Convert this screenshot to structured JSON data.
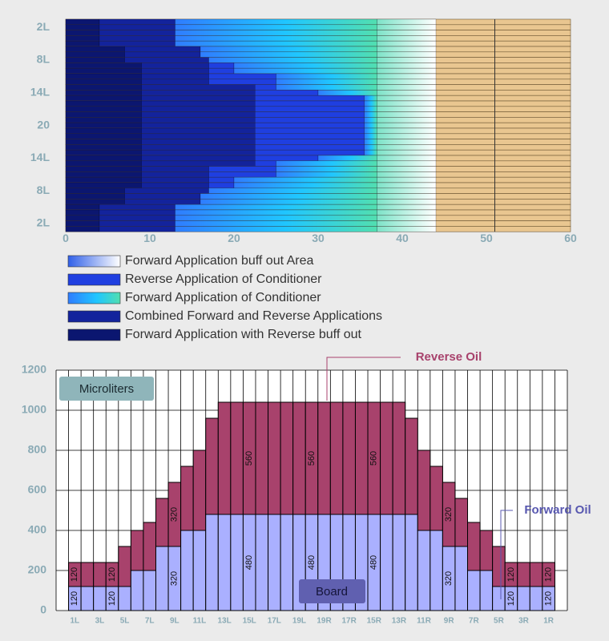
{
  "chart_data": [
    {
      "type": "bar",
      "orientation": "horizontal",
      "stacked": true,
      "categories": [
        null,
        "2L",
        null,
        null,
        null,
        null,
        null,
        "8L",
        null,
        null,
        null,
        null,
        null,
        "14L",
        null,
        null,
        null,
        null,
        null,
        "20",
        null,
        null,
        null,
        null,
        null,
        "14L",
        null,
        null,
        null,
        null,
        null,
        "8L",
        null,
        null,
        null,
        null,
        null,
        "2L",
        null
      ],
      "xlim": [
        0,
        60
      ],
      "xticks": [
        0,
        10,
        20,
        30,
        40,
        50,
        60
      ],
      "reference_line_x": 51,
      "series": [
        {
          "name": "Forward Application buff out Area",
          "color": "#3060e8",
          "values": [
            7,
            7,
            7,
            7,
            7,
            7,
            7,
            7,
            7,
            7,
            7,
            7,
            7,
            7,
            7,
            7,
            7,
            7,
            7,
            7,
            7,
            7,
            7,
            7,
            7,
            7,
            7,
            7,
            7,
            7,
            7,
            7,
            7,
            7,
            7,
            7,
            7,
            7,
            7
          ]
        },
        {
          "name": "Reverse Application of Conditioner",
          "color": "#1f3fe0",
          "values": [
            0,
            0,
            0,
            0,
            0,
            0,
            0,
            0,
            3,
            3,
            8,
            8,
            2.5,
            7.5,
            13,
            13,
            13,
            13,
            13,
            13,
            13,
            13,
            13,
            13,
            13,
            7.5,
            2.5,
            8,
            8,
            3,
            3,
            0,
            0,
            0,
            0,
            0,
            0,
            0,
            0
          ]
        },
        {
          "name": "Forward Application of Conditioner",
          "color": "#1ec8f5",
          "values": [
            24,
            24,
            24,
            24,
            24,
            21,
            21,
            20,
            17,
            17,
            12,
            12,
            12,
            7,
            1.5,
            1.5,
            1.5,
            1.5,
            1.5,
            1.5,
            1.5,
            1.5,
            1.5,
            1.5,
            1.5,
            7,
            12,
            12,
            12,
            17,
            17,
            20,
            21,
            21,
            24,
            24,
            24,
            24,
            24
          ]
        },
        {
          "name": "Combined Forward and Reverse Applications",
          "color": "#13239c",
          "values": [
            9,
            9,
            9,
            9,
            9,
            9,
            9,
            10,
            8,
            8,
            8,
            8,
            13.5,
            13.5,
            13.5,
            13.5,
            13.5,
            13.5,
            13.5,
            13.5,
            13.5,
            13.5,
            13.5,
            13.5,
            13.5,
            13.5,
            13.5,
            8,
            8,
            8,
            8,
            10,
            9,
            9,
            9,
            9,
            9,
            9,
            9
          ]
        },
        {
          "name": "Forward Application with Reverse buff out",
          "color": "#0b1670",
          "values": [
            4,
            4,
            4,
            4,
            4,
            7,
            7,
            7,
            9,
            9,
            9,
            9,
            9,
            9,
            9,
            9,
            9,
            9,
            9,
            9,
            9,
            9,
            9,
            9,
            9,
            9,
            9,
            9,
            9,
            9,
            9,
            7,
            7,
            7,
            4,
            4,
            4,
            4,
            4
          ]
        }
      ]
    },
    {
      "type": "bar",
      "stacked": true,
      "ylabel": "Microliters",
      "xlabel": "Board",
      "categories": [
        "1L",
        null,
        "3L",
        null,
        "5L",
        null,
        "7L",
        null,
        "9L",
        null,
        "11L",
        null,
        "13L",
        null,
        "15L",
        null,
        "17L",
        null,
        "19L",
        null,
        "19R",
        null,
        "17R",
        null,
        "15R",
        null,
        "13R",
        null,
        "11R",
        null,
        "9R",
        null,
        "7R",
        null,
        "5R",
        null,
        "3R",
        null,
        "1R"
      ],
      "ylim": [
        0,
        1200
      ],
      "yticks": [
        0,
        200,
        400,
        600,
        800,
        1000,
        1200
      ],
      "grid": true,
      "series": [
        {
          "name": "Forward Oil",
          "color": "#aab0ff",
          "values": [
            120,
            120,
            120,
            120,
            120,
            200,
            200,
            320,
            320,
            400,
            400,
            480,
            480,
            480,
            480,
            480,
            480,
            480,
            480,
            480,
            480,
            480,
            480,
            480,
            480,
            480,
            480,
            480,
            400,
            400,
            320,
            320,
            200,
            200,
            120,
            120,
            120,
            120,
            120
          ],
          "value_labels": [
            "120",
            null,
            null,
            "120",
            null,
            null,
            null,
            null,
            "320",
            null,
            null,
            null,
            null,
            null,
            "480",
            null,
            null,
            null,
            null,
            "480",
            null,
            null,
            null,
            null,
            "480",
            null,
            null,
            null,
            null,
            null,
            "320",
            null,
            null,
            null,
            null,
            "120",
            null,
            null,
            "120"
          ]
        },
        {
          "name": "Reverse Oil",
          "color": "#a8426c",
          "values": [
            120,
            120,
            120,
            120,
            200,
            200,
            240,
            240,
            320,
            320,
            400,
            480,
            560,
            560,
            560,
            560,
            560,
            560,
            560,
            560,
            560,
            560,
            560,
            560,
            560,
            560,
            560,
            480,
            400,
            320,
            320,
            240,
            240,
            200,
            200,
            120,
            120,
            120,
            120
          ],
          "value_labels": [
            "120",
            null,
            null,
            "120",
            null,
            null,
            null,
            null,
            "320",
            null,
            null,
            null,
            null,
            null,
            "560",
            null,
            null,
            null,
            null,
            "560",
            null,
            null,
            null,
            null,
            "560",
            null,
            null,
            null,
            null,
            null,
            "320",
            null,
            null,
            null,
            null,
            "120",
            null,
            null,
            "120"
          ]
        }
      ]
    }
  ]
}
